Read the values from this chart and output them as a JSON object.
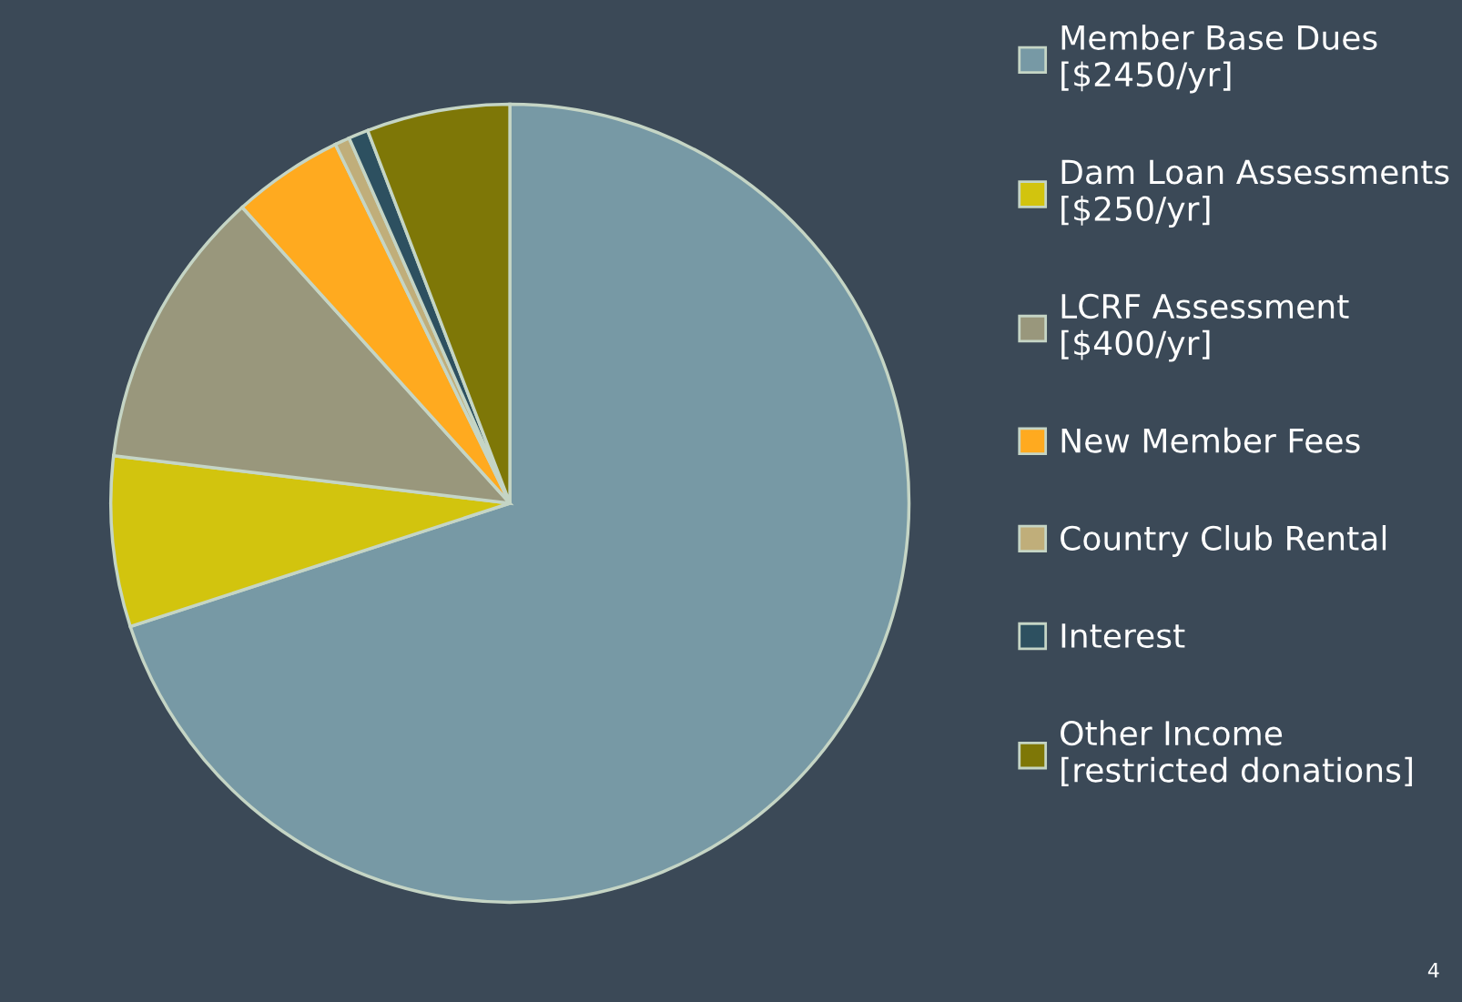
{
  "chart_data": {
    "type": "pie",
    "categories": [
      "Member Base Dues\n[$2450/yr]",
      "Dam Loan Assessments\n[$250/yr]",
      "LCRF Assessment\n[$400/yr]",
      "New Member Fees",
      "Country Club Rental",
      "Interest",
      "Other Income\n[restricted donations]"
    ],
    "values": [
      70.0,
      6.9,
      11.4,
      4.5,
      0.6,
      0.8,
      5.8
    ],
    "colors": [
      "#7799a5",
      "#d2c40e",
      "#99977c",
      "#ffaa1f",
      "#c0ae7a",
      "#2d5060",
      "#7e7707"
    ],
    "legend": "right",
    "annotations": [
      "4"
    ]
  }
}
